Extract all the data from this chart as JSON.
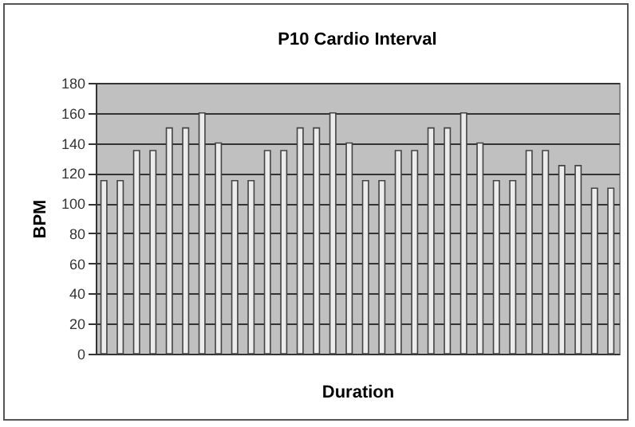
{
  "chart_data": {
    "type": "bar",
    "title": "P10 Cardio Interval",
    "xlabel": "Duration",
    "ylabel": "BPM",
    "categories": [
      null,
      null,
      null,
      null,
      null,
      null,
      null,
      null,
      null,
      null,
      null,
      null,
      null,
      null,
      null,
      null,
      null,
      null,
      null,
      null,
      null,
      null,
      null,
      null,
      null,
      null,
      null,
      null,
      null,
      null,
      null,
      null
    ],
    "values": [
      115,
      115,
      135,
      135,
      150,
      150,
      160,
      140,
      115,
      115,
      135,
      135,
      150,
      150,
      160,
      140,
      115,
      115,
      135,
      135,
      150,
      150,
      160,
      140,
      115,
      115,
      135,
      135,
      125,
      125,
      110,
      110
    ],
    "color": "#ececec",
    "ylim": [
      0,
      180
    ],
    "yticks": [
      0,
      20,
      40,
      60,
      80,
      100,
      120,
      140,
      160,
      180
    ],
    "grid": "y"
  }
}
